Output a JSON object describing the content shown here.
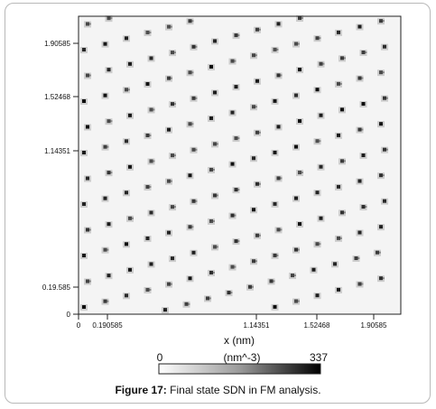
{
  "caption": {
    "label": "Figure 17:",
    "text": " Final state SDN in FM analysis."
  },
  "chart_data": {
    "type": "heatmap",
    "xlabel": "x (nm)",
    "ylabel": "",
    "x_ticks": [
      "0",
      "0.190585",
      "1.14351",
      "1.52468",
      "1.90585"
    ],
    "y_ticks": [
      "1.90585",
      "1.52468",
      "1.14351",
      "0.19.585",
      "0"
    ],
    "xlim": [
      0,
      2.1
    ],
    "ylim": [
      0,
      2.1
    ],
    "colorbar": {
      "min_label": "0",
      "unit_label": "(nm^-3)",
      "max_label": "337",
      "min": 0,
      "max": 337
    },
    "pattern": "periodic lattice of dark spots on light background, rows tilted upward to the right",
    "colors": {
      "low": "#ffffff",
      "high": "#000000",
      "background": "#f4f4f4"
    }
  }
}
